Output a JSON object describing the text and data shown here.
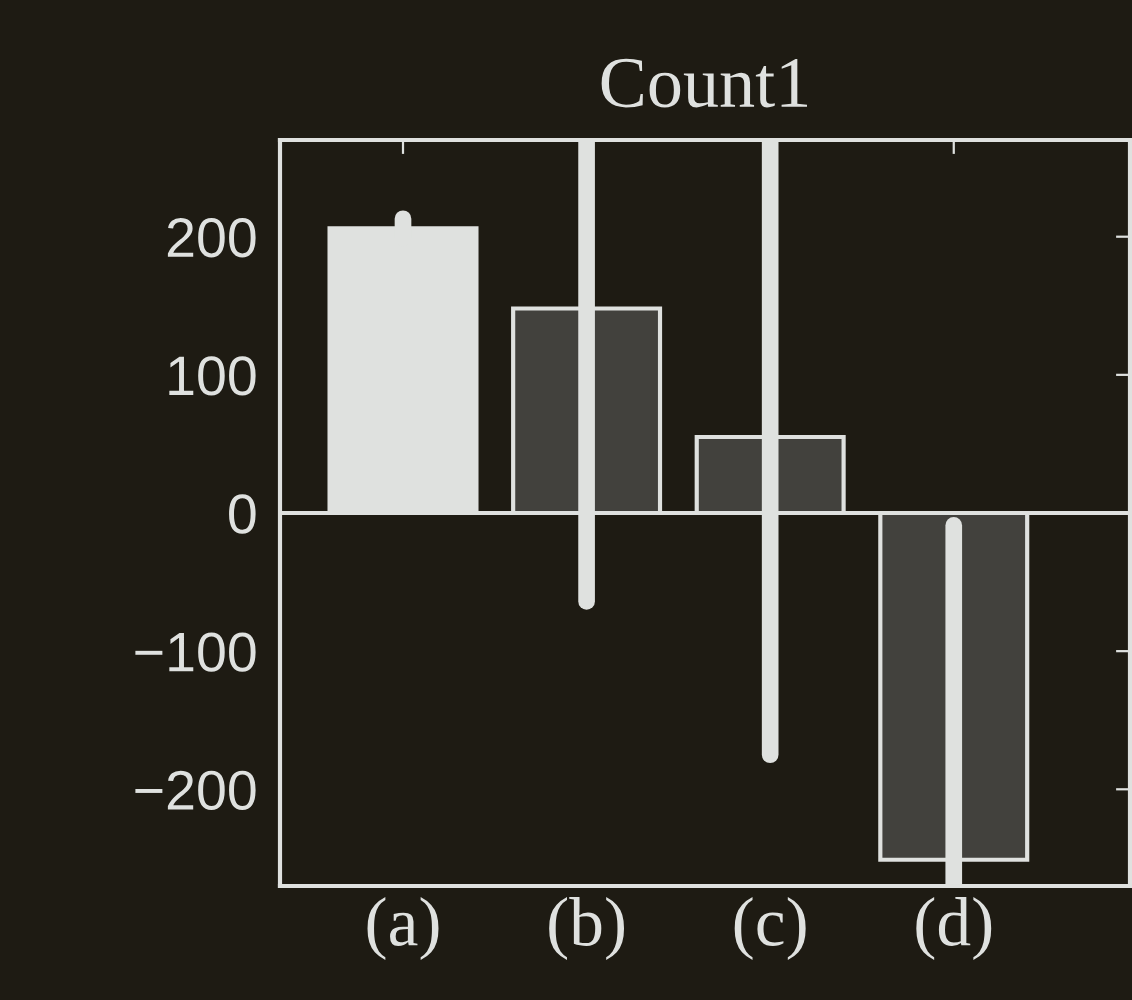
{
  "chart_data": {
    "type": "bar",
    "title": "Count1",
    "categories": [
      "(a)",
      "(b)",
      "(c)",
      "(d)"
    ],
    "values": [
      206,
      148,
      55,
      -251
    ],
    "colors": [
      "#dfe1df",
      "#42413d",
      "#42413d",
      "#42413d"
    ],
    "errors": [
      7,
      [
        -64,
        270
      ],
      [
        -175,
        270
      ],
      [
        -270,
        -9
      ]
    ],
    "ylim": [
      -270,
      270
    ],
    "yticks": [
      {
        "value": -200,
        "label": "−200"
      },
      {
        "value": -100,
        "label": "−100"
      },
      0,
      100,
      200
    ],
    "grid": false
  }
}
